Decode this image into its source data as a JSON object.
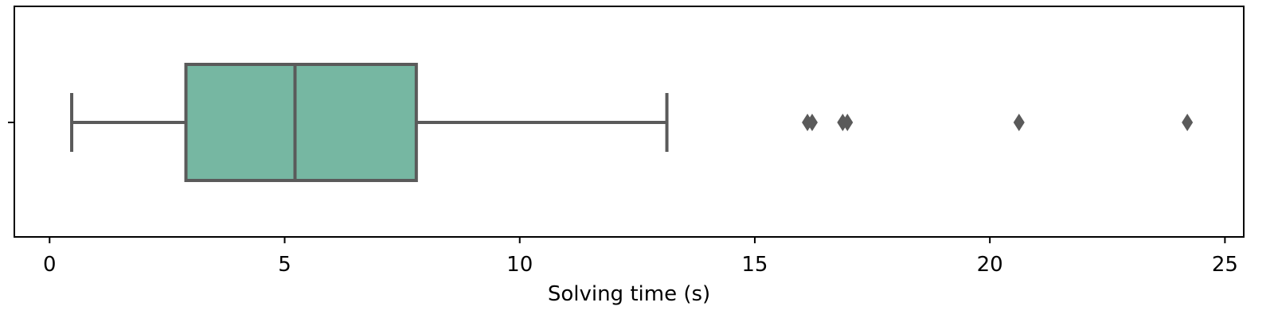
{
  "chart_data": {
    "type": "box",
    "orientation": "horizontal",
    "xlabel": "Solving time (s)",
    "ylabel": "",
    "xlim": [
      -0.75,
      25.4
    ],
    "xticks": [
      0,
      5,
      10,
      15,
      20,
      25
    ],
    "xtick_labels": [
      "0",
      "5",
      "10",
      "15",
      "20",
      "25"
    ],
    "grid": false,
    "box": {
      "whisker_low": 0.47,
      "q1": 2.9,
      "median": 5.22,
      "q3": 7.8,
      "whisker_high": 13.13,
      "outliers": [
        16.12,
        16.22,
        16.87,
        16.97,
        20.62,
        24.2
      ]
    },
    "colors": {
      "box_fill": "#76b7a2",
      "box_edge": "#5a5a5a",
      "outlier": "#5a5a5a",
      "frame": "#000000"
    }
  }
}
